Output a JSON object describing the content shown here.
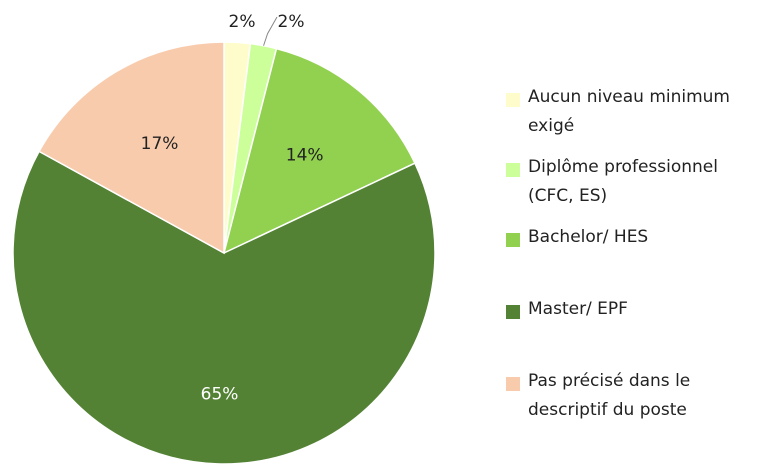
{
  "chart_data": {
    "type": "pie",
    "categories": [
      "Aucun niveau minimum exigé",
      "Diplôme professionnel (CFC, ES)",
      "Bachelor/ HES",
      "Master/ EPF",
      "Pas précisé dans le descriptif du poste"
    ],
    "values": [
      2,
      2,
      14,
      65,
      17
    ],
    "value_labels": [
      "2%",
      "2%",
      "14%",
      "65%",
      "17%"
    ],
    "colors": [
      "#FFFCCC",
      "#CCFF99",
      "#92D050",
      "#548235",
      "#F8CBAD"
    ]
  }
}
